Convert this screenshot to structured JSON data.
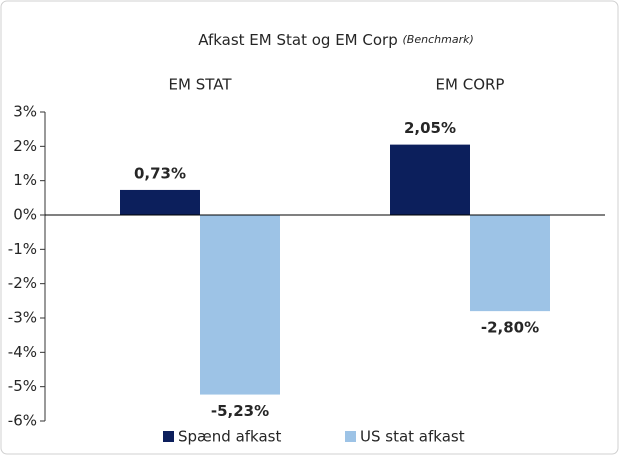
{
  "chart_data": {
    "type": "bar",
    "title": "Afkast EM Stat og EM Corp",
    "title_note": "(Benchmark)",
    "categories": [
      "EM STAT",
      "EM CORP"
    ],
    "series": [
      {
        "name": "Spænd afkast",
        "color": "#0c1f5c",
        "values": [
          0.73,
          2.05
        ],
        "value_labels": [
          "0,73%",
          "2,05%"
        ]
      },
      {
        "name": "US stat afkast",
        "color": "#9dc3e6",
        "values": [
          -5.23,
          -2.8
        ],
        "value_labels": [
          "-5,23%",
          "-2,80%"
        ]
      }
    ],
    "ylim": [
      -6,
      3
    ],
    "yticks": [
      {
        "value": -6,
        "label": "-6%"
      },
      {
        "value": -5,
        "label": "-5%"
      },
      {
        "value": -4,
        "label": "-4%"
      },
      {
        "value": -3,
        "label": "-3%"
      },
      {
        "value": -2,
        "label": "-2%"
      },
      {
        "value": -1,
        "label": "-1%"
      },
      {
        "value": 0,
        "label": "0%"
      },
      {
        "value": 1,
        "label": "1%"
      },
      {
        "value": 2,
        "label": "2%"
      },
      {
        "value": 3,
        "label": "3%"
      }
    ],
    "legend": "bottom"
  }
}
